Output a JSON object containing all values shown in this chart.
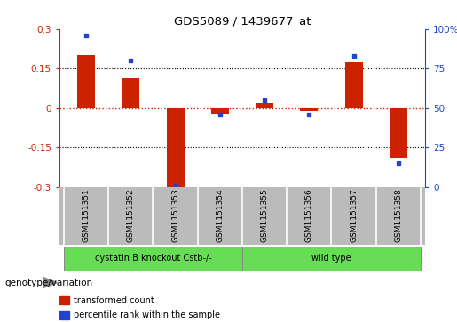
{
  "title": "GDS5089 / 1439677_at",
  "samples": [
    "GSM1151351",
    "GSM1151352",
    "GSM1151353",
    "GSM1151354",
    "GSM1151355",
    "GSM1151356",
    "GSM1151357",
    "GSM1151358"
  ],
  "transformed_count": [
    0.2,
    0.115,
    -0.305,
    -0.025,
    0.02,
    -0.01,
    0.175,
    -0.19
  ],
  "percentile_rank": [
    96,
    80,
    1,
    46,
    55,
    46,
    83,
    15
  ],
  "ylim_left": [
    -0.3,
    0.3
  ],
  "ylim_right": [
    0,
    100
  ],
  "yticks_left": [
    -0.3,
    -0.15,
    0,
    0.15,
    0.3
  ],
  "yticks_right": [
    0,
    25,
    50,
    75,
    100
  ],
  "ytick_labels_left": [
    "-0.3",
    "-0.15",
    "0",
    "0.15",
    "0.3"
  ],
  "ytick_labels_right": [
    "0",
    "25",
    "50",
    "75",
    "100%"
  ],
  "groups": [
    {
      "label": "cystatin B knockout Cstb-/-",
      "n": 4,
      "color": "#66dd55"
    },
    {
      "label": "wild type",
      "n": 4,
      "color": "#66dd55"
    }
  ],
  "group_label": "genotype/variation",
  "bar_color": "#cc2200",
  "dot_color": "#2244cc",
  "legend_bar_label": "transformed count",
  "legend_dot_label": "percentile rank within the sample",
  "hline_color": "#cc2200",
  "grid_color": "#000000",
  "bar_width": 0.4,
  "bg_color": "#ffffff",
  "sample_box_color": "#bbbbbb"
}
